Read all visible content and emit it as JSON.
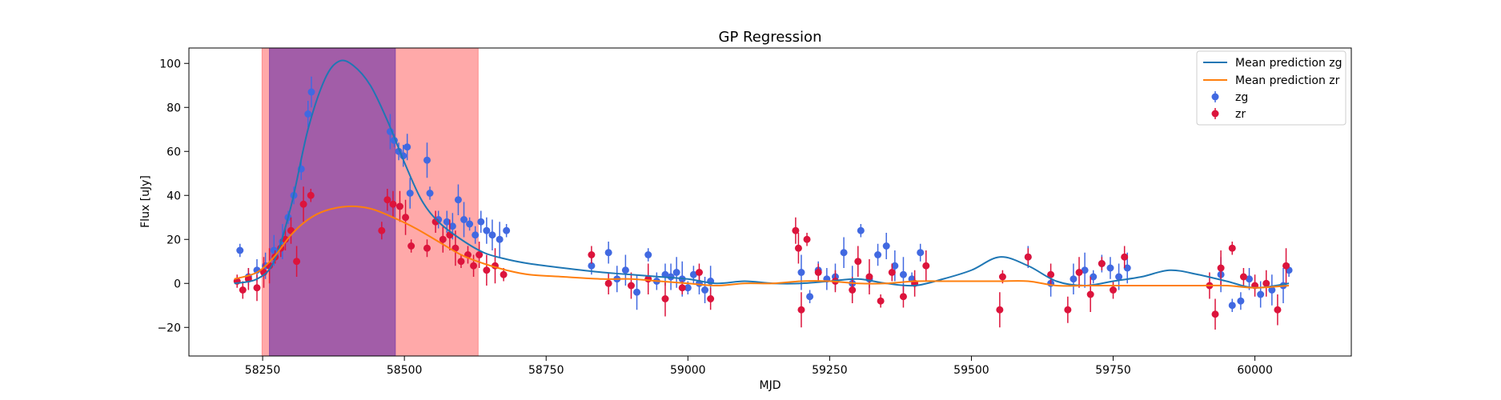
{
  "chart_data": {
    "type": "scatter",
    "title": "GP Regression",
    "xlabel": "MJD",
    "ylabel": "Flux [uJy]",
    "xlim": [
      58120,
      60170
    ],
    "ylim": [
      -33,
      107
    ],
    "x_ticks": [
      58250,
      58500,
      58750,
      59000,
      59250,
      59500,
      59750,
      60000
    ],
    "x_tick_labels": [
      "58250",
      "58500",
      "58750",
      "59000",
      "59250",
      "59500",
      "59750",
      "60000"
    ],
    "y_ticks": [
      -20,
      0,
      20,
      40,
      60,
      80,
      100
    ],
    "y_tick_labels": [
      "−20",
      "0",
      "20",
      "40",
      "60",
      "80",
      "100"
    ],
    "grid": false,
    "legend_position": "top-right",
    "colors": {
      "zg_points": "#4169e1",
      "zr_points": "#dc143c",
      "mean_zg": "#1f77b4",
      "mean_zr": "#ff7f0e",
      "band_zr": "#ff8c8c",
      "band_zg": "#8b4aa8"
    },
    "shaded_regions": [
      {
        "band": "zr",
        "x_start": 58249,
        "x_end": 58630
      },
      {
        "band": "zg",
        "x_start": 58262,
        "x_end": 58484
      }
    ],
    "series": [
      {
        "name": "Mean prediction zg",
        "kind": "line",
        "x": [
          58200,
          58240,
          58270,
          58300,
          58330,
          58360,
          58385,
          58410,
          58440,
          58470,
          58500,
          58530,
          58560,
          58600,
          58640,
          58680,
          58720,
          58780,
          58850,
          58900,
          58950,
          59000,
          59050,
          59100,
          59150,
          59200,
          59250,
          59300,
          59350,
          59400,
          59450,
          59500,
          59550,
          59600,
          59650,
          59700,
          59750,
          59800,
          59850,
          59900,
          59950,
          60000,
          60060
        ],
        "y": [
          0,
          2,
          10,
          35,
          70,
          93,
          101,
          99,
          90,
          74,
          55,
          38,
          28,
          20,
          14,
          11,
          9,
          7,
          5,
          4,
          3,
          2,
          0,
          1,
          0,
          0,
          1,
          2,
          0,
          -1,
          2,
          6,
          12,
          8,
          1,
          -1,
          1,
          3,
          6,
          4,
          1,
          -2,
          0
        ]
      },
      {
        "name": "Mean prediction zr",
        "kind": "line",
        "x": [
          58200,
          58240,
          58270,
          58300,
          58330,
          58360,
          58400,
          58440,
          58480,
          58520,
          58560,
          58600,
          58640,
          58680,
          58720,
          58780,
          58850,
          58900,
          58950,
          59000,
          59050,
          59100,
          59150,
          59200,
          59250,
          59300,
          59350,
          59400,
          59450,
          59500,
          59550,
          59600,
          59650,
          59700,
          59750,
          59800,
          59850,
          59900,
          59950,
          60000,
          60060
        ],
        "y": [
          2,
          5,
          12,
          22,
          29,
          33,
          35,
          34,
          30,
          25,
          19,
          13,
          9,
          6,
          4,
          3,
          2,
          2,
          1,
          0,
          -1,
          0,
          0,
          1,
          1,
          0,
          0,
          1,
          1,
          1,
          1,
          1,
          -1,
          -1,
          -1,
          -1,
          -1,
          -1,
          -1,
          -2,
          -1
        ]
      },
      {
        "name": "zg",
        "kind": "points",
        "x": [
          58210,
          58225,
          58240,
          58255,
          58270,
          58285,
          58295,
          58305,
          58318,
          58330,
          58336,
          58475,
          58482,
          58490,
          58498,
          58505,
          58510,
          58540,
          58545,
          58560,
          58575,
          58585,
          58595,
          58605,
          58615,
          58625,
          58635,
          58645,
          58655,
          58668,
          58680,
          58830,
          58860,
          58875,
          58890,
          58910,
          58930,
          58945,
          58960,
          58970,
          58980,
          58990,
          59000,
          59010,
          59020,
          59030,
          59040,
          59200,
          59215,
          59230,
          59245,
          59260,
          59275,
          59290,
          59305,
          59320,
          59335,
          59350,
          59365,
          59380,
          59395,
          59410,
          59600,
          59640,
          59680,
          59700,
          59715,
          59730,
          59745,
          59760,
          59775,
          59940,
          59960,
          59975,
          59990,
          60010,
          60030,
          60050,
          60060
        ],
        "y": [
          15,
          3,
          6,
          8,
          15,
          19,
          30,
          40,
          52,
          77,
          87,
          69,
          65,
          60,
          58,
          62,
          41,
          56,
          41,
          29,
          28,
          26,
          38,
          29,
          27,
          22,
          28,
          24,
          22,
          20,
          24,
          8,
          14,
          2,
          6,
          -4,
          13,
          1,
          4,
          3,
          5,
          2,
          -2,
          4,
          0,
          -3,
          1,
          5,
          -6,
          6,
          2,
          3,
          14,
          0,
          24,
          2,
          13,
          17,
          8,
          4,
          2,
          14,
          12,
          0,
          2,
          6,
          3,
          9,
          7,
          3,
          7,
          4,
          -10,
          -8,
          2,
          -5,
          -3,
          -1,
          6
        ]
      },
      {
        "name": "zr",
        "kind": "points",
        "x": [
          58205,
          58215,
          58225,
          58240,
          58252,
          58262,
          58272,
          58282,
          58290,
          58300,
          58310,
          58322,
          58335,
          58460,
          58470,
          58480,
          58492,
          58502,
          58512,
          58540,
          58555,
          58568,
          58580,
          58590,
          58600,
          58612,
          58622,
          58632,
          58645,
          58660,
          58675,
          58830,
          58860,
          58900,
          58930,
          58960,
          58990,
          59020,
          59040,
          59190,
          59195,
          59200,
          59210,
          59230,
          59260,
          59290,
          59300,
          59320,
          59340,
          59360,
          59380,
          59400,
          59420,
          59550,
          59555,
          59600,
          59640,
          59670,
          59690,
          59710,
          59730,
          59750,
          59770,
          59920,
          59930,
          59940,
          59960,
          59980,
          60000,
          60020,
          60040,
          60055
        ],
        "y": [
          1,
          -3,
          2,
          -2,
          5,
          8,
          12,
          16,
          20,
          24,
          10,
          36,
          40,
          24,
          38,
          36,
          35,
          30,
          17,
          16,
          28,
          20,
          22,
          16,
          10,
          13,
          8,
          13,
          6,
          8,
          4,
          13,
          0,
          -1,
          2,
          -7,
          -2,
          5,
          -7,
          24,
          16,
          -12,
          20,
          5,
          1,
          -3,
          10,
          3,
          -8,
          5,
          -6,
          0,
          8,
          -12,
          3,
          12,
          4,
          -12,
          5,
          -5,
          9,
          -3,
          12,
          -1,
          -14,
          7,
          16,
          3,
          -1,
          0,
          -12,
          8
        ]
      }
    ]
  }
}
